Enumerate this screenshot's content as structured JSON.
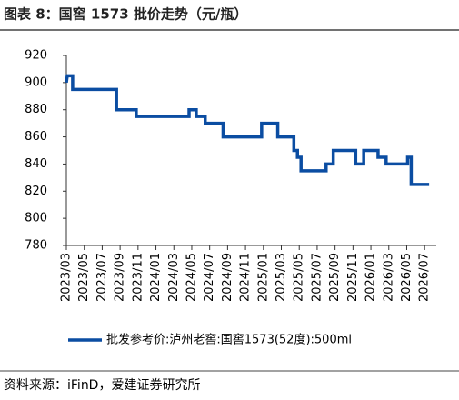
{
  "chart_data": {
    "type": "line",
    "title": "图表 8：国窖 1573 批价走势（元/瓶）",
    "source": "资料来源：iFinD，爱建证券研究所",
    "x": [
      0,
      0.1,
      0.7,
      0.7,
      5.6,
      5.6,
      7.8,
      7.8,
      13.7,
      13.7,
      14.5,
      14.5,
      15.5,
      15.5,
      17.5,
      17.5,
      21.8,
      21.8,
      23.6,
      23.6,
      25.4,
      25.4,
      25.8,
      25.8,
      26.2,
      26.2,
      29,
      29,
      29.8,
      29.8,
      32.3,
      32.3,
      33.2,
      33.2,
      34.8,
      34.8,
      35.7,
      35.7,
      38.1,
      38.1,
      38.5,
      38.5,
      40.5
    ],
    "series": [
      {
        "name": "批发参考价:泸州老窖:国窖1573(52度):500ml",
        "color": "#0b4da2",
        "values": [
          900,
          905,
          905,
          895,
          895,
          880,
          880,
          875,
          875,
          880,
          880,
          875,
          875,
          870,
          870,
          860,
          860,
          870,
          870,
          860,
          860,
          850,
          850,
          845,
          845,
          835,
          835,
          840,
          840,
          850,
          850,
          840,
          840,
          850,
          850,
          845,
          845,
          840,
          840,
          845,
          845,
          825,
          825
        ]
      }
    ],
    "xlim": [
      0,
      41.3
    ],
    "xticks": [
      {
        "value": 0,
        "label": "2023/03"
      },
      {
        "value": 2,
        "label": "2023/05"
      },
      {
        "value": 4,
        "label": "2023/07"
      },
      {
        "value": 6,
        "label": "2023/09"
      },
      {
        "value": 8,
        "label": "2023/11"
      },
      {
        "value": 10,
        "label": "2024/01"
      },
      {
        "value": 12,
        "label": "2024/03"
      },
      {
        "value": 14,
        "label": "2024/05"
      },
      {
        "value": 16,
        "label": "2024/07"
      },
      {
        "value": 18,
        "label": "2024/09"
      },
      {
        "value": 20,
        "label": "2024/11"
      },
      {
        "value": 22,
        "label": "2025/01"
      },
      {
        "value": 24,
        "label": "2025/03"
      },
      {
        "value": 26,
        "label": "2025/05"
      },
      {
        "value": 28,
        "label": "2025/07"
      },
      {
        "value": 30,
        "label": "2025/09"
      },
      {
        "value": 32,
        "label": "2025/11"
      },
      {
        "value": 34,
        "label": "2026/01"
      },
      {
        "value": 36,
        "label": "2026/03"
      },
      {
        "value": 38,
        "label": "2026/05"
      },
      {
        "value": 40,
        "label": "2026/07"
      }
    ],
    "ylim": [
      780,
      920
    ],
    "yticks": [
      780,
      800,
      820,
      840,
      860,
      880,
      900,
      920
    ],
    "grid": false
  }
}
